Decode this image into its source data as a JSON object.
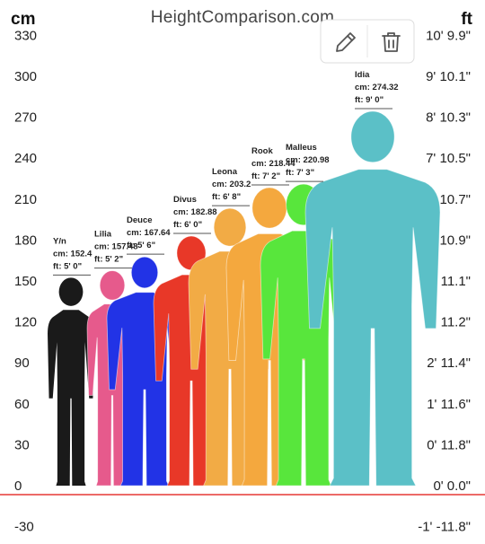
{
  "header": {
    "left_unit": "cm",
    "site": "HeightComparison.com",
    "right_unit": "ft"
  },
  "toolbar": {
    "edit_icon": "pencil-icon",
    "delete_icon": "trash-icon"
  },
  "colors": {
    "baseline": "#e53935",
    "text": "#222222"
  },
  "chart_data": {
    "type": "bar",
    "title": "",
    "ylabel_left": "cm",
    "ylabel_right": "ft",
    "ylim": [
      -30,
      330
    ],
    "yticks_cm": [
      "-30",
      "0",
      "30",
      "60",
      "90",
      "120",
      "150",
      "180",
      "210",
      "240",
      "270",
      "300",
      "330"
    ],
    "yticks_cm_values": [
      -30,
      0,
      30,
      60,
      90,
      120,
      150,
      180,
      210,
      240,
      270,
      300,
      330
    ],
    "yticks_ft": [
      "-1' -11.8\"",
      "0' 0.0\"",
      "0' 11.8\"",
      "1' 11.6\"",
      "2' 11.4\"",
      "3' 11.2\"",
      "4' 11.1\"",
      "5' 10.9\"",
      "6' 10.7\"",
      "7' 10.5\"",
      "8' 10.3\"",
      "9' 10.1\"",
      "10' 9.9\""
    ],
    "series": [
      {
        "name": "Y/n",
        "value": 152.4,
        "cm_label": "cm: 152.4",
        "ft_label": "ft: 5' 0\"",
        "color": "#1a1a1a"
      },
      {
        "name": "Lilia",
        "value": 157.48,
        "cm_label": "cm: 157.48",
        "ft_label": "ft: 5' 2\"",
        "color": "#e65a8c"
      },
      {
        "name": "Deuce",
        "value": 167.64,
        "cm_label": "cm: 167.64",
        "ft_label": "ft: 5' 6\"",
        "color": "#2233e6"
      },
      {
        "name": "Divus",
        "value": 182.88,
        "cm_label": "cm: 182.88",
        "ft_label": "ft: 6' 0\"",
        "color": "#e83828"
      },
      {
        "name": "Leona",
        "value": 203.2,
        "cm_label": "cm: 203.2",
        "ft_label": "ft: 6' 8\"",
        "color": "#f2ab45"
      },
      {
        "name": "Rook",
        "value": 218.44,
        "cm_label": "cm: 218.44",
        "ft_label": "ft: 7' 2\"",
        "color": "#f4a83e"
      },
      {
        "name": "Malleus",
        "value": 220.98,
        "cm_label": "cm: 220.98",
        "ft_label": "ft: 7' 3\"",
        "color": "#58e63c"
      },
      {
        "name": "Idia",
        "value": 274.32,
        "cm_label": "cm: 274.32",
        "ft_label": "ft: 9' 0\"",
        "color": "#5bc0c7"
      }
    ]
  }
}
